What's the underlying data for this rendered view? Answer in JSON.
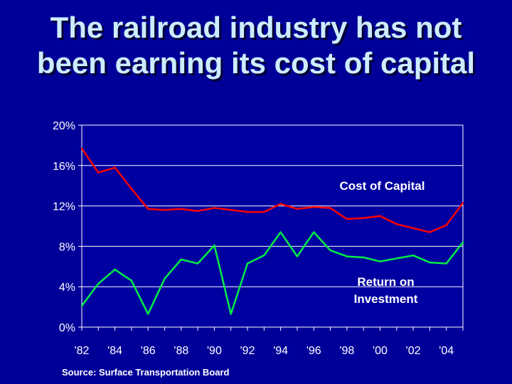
{
  "title_lines": [
    "The railroad industry has not",
    "been earning its cost of capital"
  ],
  "source": "Source:  Surface Transportation Board",
  "colors": {
    "background": "#000099",
    "plot_background": "#0000a0",
    "gridline": "#ffffff",
    "cost_of_capital": "#ff0000",
    "return_on_investment": "#00ee44",
    "text": "#ffffff",
    "title": "#ccecff"
  },
  "chart_data": {
    "type": "line",
    "title": "",
    "xlabel": "",
    "ylabel": "",
    "x": [
      1982,
      1983,
      1984,
      1985,
      1986,
      1987,
      1988,
      1989,
      1990,
      1991,
      1992,
      1993,
      1994,
      1995,
      1996,
      1997,
      1998,
      1999,
      2000,
      2001,
      2002,
      2003,
      2004,
      2005
    ],
    "x_tick_labels": [
      "'82",
      "'84",
      "'86",
      "'88",
      "'90",
      "'92",
      "'94",
      "'96",
      "'98",
      "'00",
      "'02",
      "'04"
    ],
    "x_ticks": [
      1982,
      1984,
      1986,
      1988,
      1990,
      1992,
      1994,
      1996,
      1998,
      2000,
      2002,
      2004
    ],
    "y_tick_labels": [
      "0%",
      "4%",
      "8%",
      "12%",
      "16%",
      "20%"
    ],
    "y_ticks": [
      0,
      4,
      8,
      12,
      16,
      20
    ],
    "ylim": [
      0,
      20
    ],
    "xlim": [
      1982,
      2005
    ],
    "grid": "horizontal",
    "series": [
      {
        "name": "Cost of Capital",
        "label_lines": [
          "Cost of Capital"
        ],
        "values": [
          17.7,
          15.3,
          15.8,
          13.7,
          11.7,
          11.6,
          11.7,
          11.5,
          11.8,
          11.6,
          11.4,
          11.4,
          12.2,
          11.7,
          11.9,
          11.8,
          10.7,
          10.8,
          11.0,
          10.2,
          9.8,
          9.4,
          10.1,
          12.3
        ]
      },
      {
        "name": "Return on Investment",
        "label_lines": [
          "Return on",
          "Investment"
        ],
        "values": [
          2.1,
          4.3,
          5.7,
          4.6,
          1.3,
          4.8,
          6.7,
          6.3,
          8.1,
          1.3,
          6.3,
          7.1,
          9.4,
          7.0,
          9.4,
          7.6,
          7.0,
          6.9,
          6.5,
          6.8,
          7.1,
          6.4,
          6.3,
          8.4
        ]
      }
    ]
  }
}
